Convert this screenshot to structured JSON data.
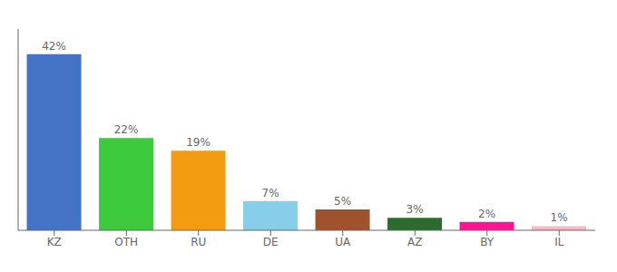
{
  "chart_data": {
    "type": "bar",
    "categories": [
      "KZ",
      "OTH",
      "RU",
      "DE",
      "UA",
      "AZ",
      "BY",
      "IL"
    ],
    "values": [
      42,
      22,
      19,
      7,
      5,
      3,
      2,
      1
    ],
    "value_labels": [
      "42%",
      "22%",
      "19%",
      "7%",
      "5%",
      "3%",
      "2%",
      "1%"
    ],
    "data_labels": true,
    "colors": [
      "#4472c4",
      "#3dca3d",
      "#f39c12",
      "#87ceeb",
      "#a0522d",
      "#2d6a2d",
      "#ff1493",
      "#ffb6c1"
    ],
    "ylim": [
      0,
      48
    ],
    "tick_labels": "x",
    "grid": false
  }
}
